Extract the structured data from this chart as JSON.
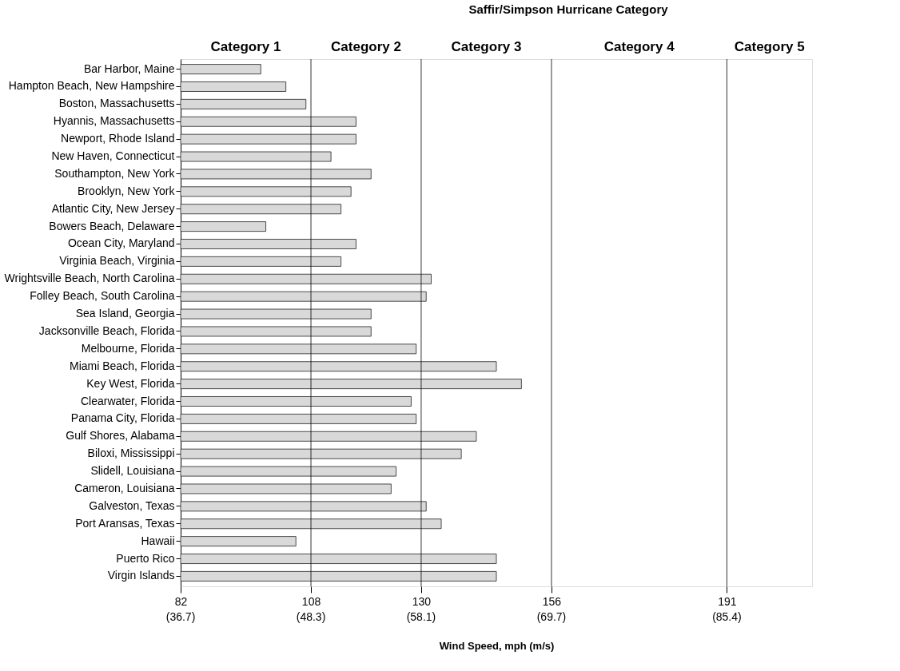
{
  "chart_data": {
    "type": "bar",
    "orientation": "horizontal",
    "title": "Saffir/Simpson Hurricane Category",
    "xlabel": "Wind Speed, mph (m/s)",
    "categories": [
      "Bar Harbor, Maine",
      "Hampton Beach, New Hampshire",
      "Boston, Massachusetts",
      "Hyannis, Massachusetts",
      "Newport, Rhode Island",
      "New Haven, Connecticut",
      "Southampton, New York",
      "Brooklyn, New York",
      "Atlantic City, New Jersey",
      "Bowers Beach, Delaware",
      "Ocean City, Maryland",
      "Virginia Beach, Virginia",
      "Wrightsville Beach, North Carolina",
      "Folley Beach, South Carolina",
      "Sea Island, Georgia",
      "Jacksonville Beach, Florida",
      "Melbourne, Florida",
      "Miami Beach, Florida",
      "Key West, Florida",
      "Clearwater, Florida",
      "Panama City, Florida",
      "Gulf Shores, Alabama",
      "Biloxi, Mississippi",
      "Slidell, Louisiana",
      "Cameron, Louisiana",
      "Galveston, Texas",
      "Port Aransas, Texas",
      "Hawaii",
      "Puerto Rico",
      "Virgin Islands"
    ],
    "base": [
      82,
      82,
      82,
      82,
      82,
      82,
      82,
      82,
      82,
      82,
      82,
      82,
      82,
      82,
      82,
      82,
      82,
      82,
      82,
      82,
      82,
      82,
      82,
      82,
      82,
      82,
      82,
      82,
      82,
      82
    ],
    "values": [
      16,
      21,
      25,
      35,
      35,
      30,
      38,
      34,
      32,
      17,
      35,
      32,
      50,
      49,
      38,
      38,
      47,
      63,
      68,
      46,
      47,
      59,
      56,
      43,
      42,
      49,
      52,
      23,
      63,
      63
    ],
    "color": "#d9d9d9",
    "xlim": [
      82,
      208
    ],
    "xticks": [
      82,
      108,
      130,
      156,
      191
    ],
    "annotations": [
      "(36.7)",
      "(48.3)",
      "(58.1)",
      "(69.7)",
      "(85.4)",
      "Category 1",
      "Category 2",
      "Category 3",
      "Category 4",
      "Category 5"
    ],
    "grid": "x",
    "legend": false
  }
}
